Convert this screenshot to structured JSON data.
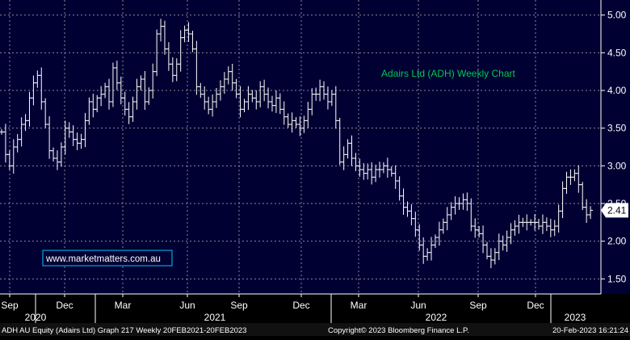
{
  "chart_data": {
    "type": "line",
    "title": "Adairs Ltd (ADH) Weekly Chart",
    "watermark": "www.marketmatters.com.au",
    "y_ticks": [
      "5.00",
      "4.50",
      "4.00",
      "3.50",
      "3.00",
      "2.50",
      "2.00",
      "1.50"
    ],
    "ylim": [
      1.3,
      5.2
    ],
    "last_price": "2.41",
    "month_ticks": [
      "Sep",
      "Dec",
      "Mar",
      "Jun",
      "Sep",
      "Dec",
      "Mar",
      "Jun",
      "Sep",
      "Dec"
    ],
    "year_labels": [
      "2020",
      "2021",
      "2022",
      "2023"
    ],
    "footer_left": "ADH AU Equity (Adairs Ltd) Graph 217  Weekly 20FEB2021-20FEB2023",
    "footer_mid": "Copyright© 2023 Bloomberg Finance L.P.",
    "footer_right": "20-Feb-2023 16:21:24",
    "colors": {
      "background": "#000033",
      "grid": "#8a8a9a",
      "price": "#ffffff",
      "title": "#00c853",
      "watermark": "#ffffff"
    },
    "series": [
      {
        "values": [
          3.45,
          3.15,
          3.0,
          3.25,
          3.35,
          3.55,
          3.6,
          3.9,
          4.1,
          4.2,
          3.85,
          3.55,
          3.2,
          3.1,
          3.05,
          3.25,
          3.5,
          3.45,
          3.35,
          3.3,
          3.35,
          3.6,
          3.85,
          3.75,
          3.9,
          3.95,
          4.05,
          3.85,
          4.3,
          4.1,
          3.9,
          3.75,
          3.65,
          3.85,
          4.05,
          4.15,
          3.85,
          4.0,
          4.25,
          4.75,
          4.85,
          4.55,
          4.35,
          4.2,
          4.35,
          4.7,
          4.8,
          4.75,
          4.55,
          4.05,
          3.95,
          3.85,
          3.75,
          3.85,
          3.95,
          4.05,
          4.15,
          4.25,
          4.1,
          3.95,
          3.75,
          3.85,
          3.95,
          3.9,
          3.85,
          4.05,
          3.95,
          3.85,
          3.8,
          3.9,
          3.75,
          3.65,
          3.55,
          3.6,
          3.55,
          3.5,
          3.6,
          3.75,
          3.95,
          3.95,
          4.05,
          3.95,
          3.85,
          3.95,
          3.6,
          3.05,
          3.15,
          3.3,
          3.1,
          3.0,
          2.95,
          2.9,
          2.95,
          2.85,
          2.95,
          2.95,
          3.0,
          2.95,
          2.9,
          2.8,
          2.6,
          2.45,
          2.4,
          2.3,
          2.15,
          1.95,
          1.8,
          1.85,
          1.95,
          2.05,
          2.15,
          2.25,
          2.35,
          2.45,
          2.5,
          2.5,
          2.55,
          2.5,
          2.2,
          2.15,
          2.1,
          1.95,
          1.8,
          1.75,
          1.85,
          2.0,
          1.95,
          2.05,
          2.15,
          2.2,
          2.25,
          2.25,
          2.25,
          2.25,
          2.25,
          2.2,
          2.25,
          2.2,
          2.15,
          2.2,
          2.4,
          2.7,
          2.85,
          2.85,
          2.9,
          2.75,
          2.45,
          2.35,
          2.41
        ]
      }
    ]
  }
}
